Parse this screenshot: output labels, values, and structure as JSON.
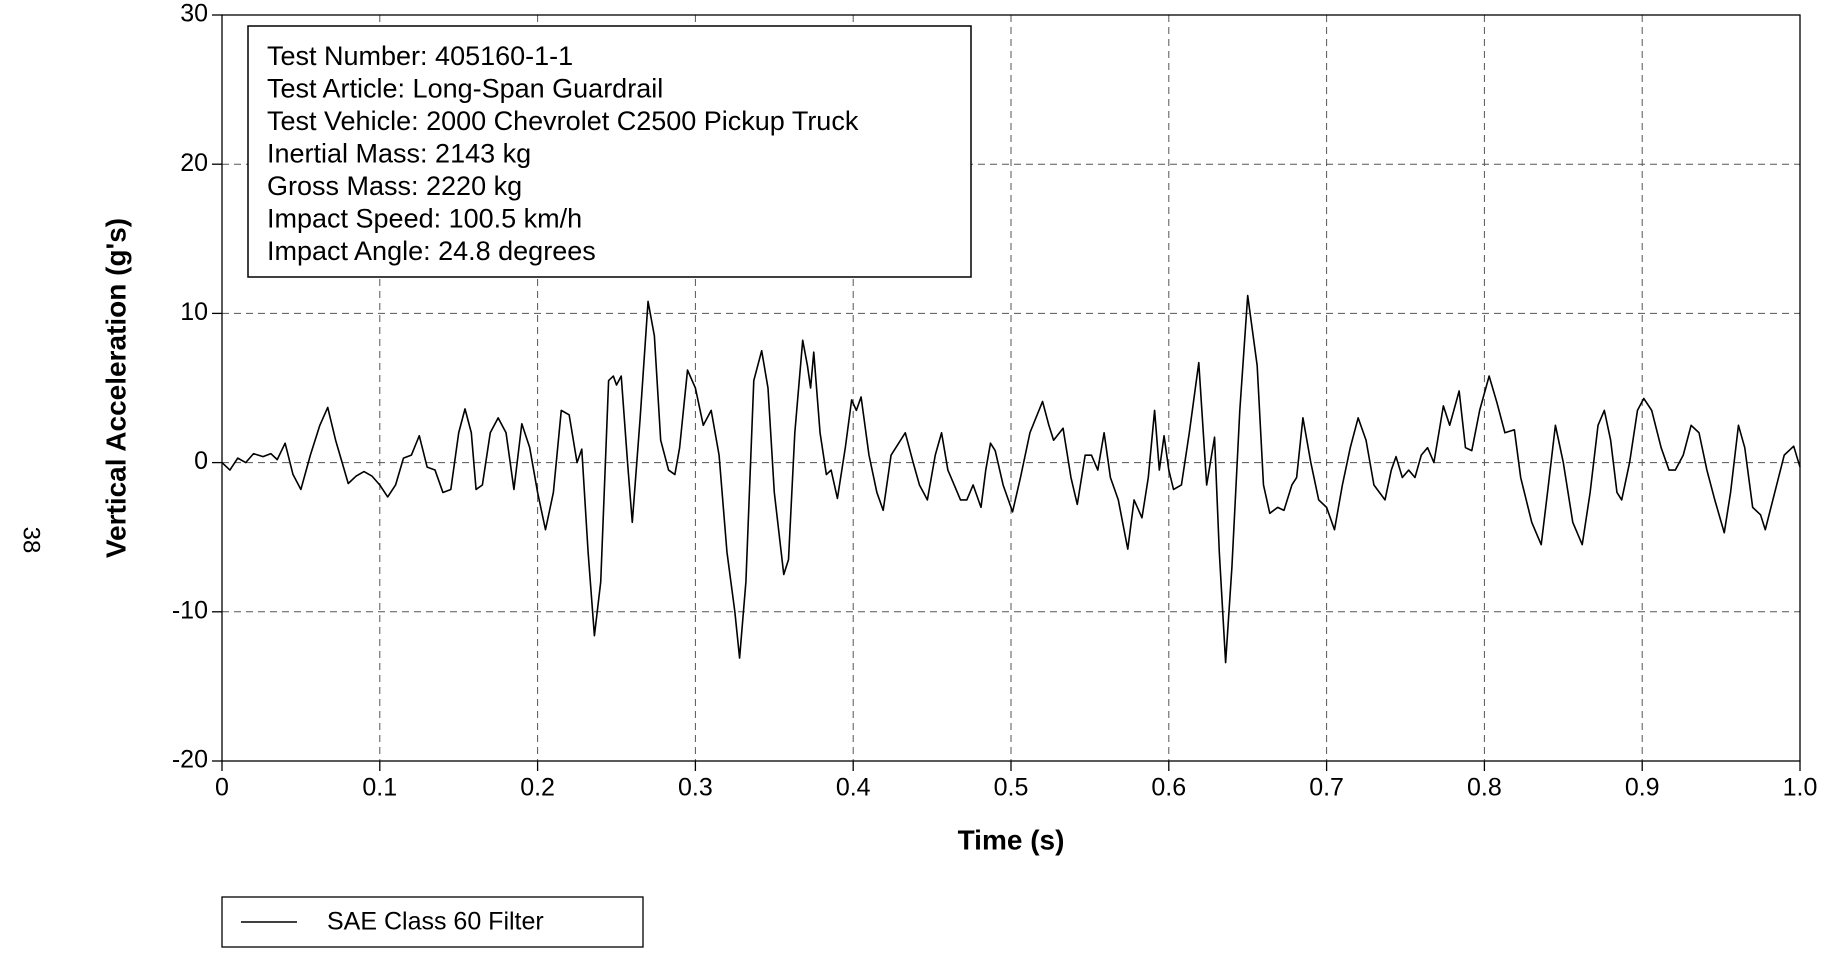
{
  "chart_data": {
    "type": "line",
    "page_number": "38",
    "xlabel": "Time (s)",
    "ylabel": "Vertical Acceleration (g's)",
    "annotations": [
      "Test Number: 405160-1-1",
      "Test Article: Long-Span Guardrail",
      "Test Vehicle: 2000 Chevrolet C2500 Pickup Truck",
      "Inertial Mass: 2143 kg",
      "Gross Mass: 2220 kg",
      "Impact Speed: 100.5 km/h",
      "Impact Angle: 24.8 degrees"
    ],
    "xlim": [
      0,
      1
    ],
    "ylim": [
      -20,
      30
    ],
    "xticks": [
      0,
      0.1,
      0.2,
      0.3,
      0.4,
      0.5,
      0.6,
      0.7,
      0.8,
      0.9,
      {
        "value": 1,
        "label": "1.0"
      }
    ],
    "yticks": [
      -20,
      -10,
      0,
      10,
      20,
      30
    ],
    "grid": true,
    "legend": "bottom-left",
    "x": [
      0,
      0.005,
      0.01,
      0.015,
      0.02,
      0.026,
      0.031,
      0.035,
      0.04,
      0.045,
      0.05,
      0.056,
      0.062,
      0.067,
      0.072,
      0.08,
      0.085,
      0.09,
      0.095,
      0.1,
      0.105,
      0.11,
      0.115,
      0.12,
      0.125,
      0.13,
      0.135,
      0.14,
      0.145,
      0.15,
      0.154,
      0.158,
      0.161,
      0.165,
      0.17,
      0.175,
      0.18,
      0.185,
      0.19,
      0.195,
      0.2,
      0.205,
      0.21,
      0.215,
      0.22,
      0.225,
      0.228,
      0.232,
      0.236,
      0.24,
      0.245,
      0.248,
      0.25,
      0.253,
      0.257,
      0.26,
      0.265,
      0.27,
      0.274,
      0.278,
      0.283,
      0.287,
      0.29,
      0.295,
      0.3,
      0.305,
      0.31,
      0.315,
      0.32,
      0.325,
      0.328,
      0.332,
      0.337,
      0.342,
      0.346,
      0.35,
      0.356,
      0.359,
      0.363,
      0.368,
      0.371,
      0.373,
      0.375,
      0.379,
      0.383,
      0.386,
      0.39,
      0.395,
      0.399,
      0.402,
      0.405,
      0.41,
      0.415,
      0.419,
      0.424,
      0.433,
      0.438,
      0.442,
      0.447,
      0.452,
      0.456,
      0.46,
      0.464,
      0.468,
      0.472,
      0.476,
      0.481,
      0.484,
      0.487,
      0.49,
      0.495,
      0.501,
      0.506,
      0.512,
      0.52,
      0.524,
      0.527,
      0.533,
      0.538,
      0.542,
      0.547,
      0.551,
      0.555,
      0.559,
      0.563,
      0.568,
      0.574,
      0.578,
      0.583,
      0.587,
      0.591,
      0.594,
      0.597,
      0.6,
      0.603,
      0.608,
      0.613,
      0.619,
      0.624,
      0.629,
      0.632,
      0.636,
      0.64,
      0.645,
      0.65,
      0.656,
      0.66,
      0.664,
      0.669,
      0.673,
      0.678,
      0.681,
      0.685,
      0.69,
      0.695,
      0.7,
      0.705,
      0.71,
      0.715,
      0.72,
      0.725,
      0.73,
      0.737,
      0.741,
      0.744,
      0.748,
      0.752,
      0.756,
      0.76,
      0.764,
      0.768,
      0.774,
      0.778,
      0.784,
      0.788,
      0.792,
      0.797,
      0.803,
      0.808,
      0.813,
      0.819,
      0.823,
      0.83,
      0.836,
      0.84,
      0.845,
      0.85,
      0.856,
      0.862,
      0.867,
      0.872,
      0.876,
      0.88,
      0.884,
      0.887,
      0.892,
      0.897,
      0.901,
      0.906,
      0.912,
      0.917,
      0.921,
      0.926,
      0.931,
      0.936,
      0.941,
      0.946,
      0.952,
      0.956,
      0.961,
      0.965,
      0.97,
      0.975,
      0.978,
      0.984,
      0.99,
      0.996,
      1
    ],
    "series": [
      {
        "name": "SAE Class 60 Filter",
        "color": "#000000",
        "values": [
          0,
          -0.5,
          0.3,
          0,
          0.6,
          0.4,
          0.6,
          0.2,
          1.3,
          -0.8,
          -1.8,
          0.5,
          2.5,
          3.7,
          1.5,
          -1.4,
          -0.9,
          -0.6,
          -0.9,
          -1.5,
          -2.3,
          -1.5,
          0.3,
          0.5,
          1.8,
          -0.3,
          -0.5,
          -2,
          -1.8,
          2,
          3.6,
          2,
          -1.8,
          -1.5,
          2,
          3,
          2,
          -1.8,
          2.6,
          1,
          -2,
          -4.5,
          -2,
          3.5,
          3.2,
          0,
          0.9,
          -6,
          -11.6,
          -8,
          5.5,
          5.8,
          5.2,
          5.8,
          0,
          -4,
          3,
          10.8,
          8.5,
          1.5,
          -0.5,
          -0.8,
          1,
          6.2,
          5,
          2.5,
          3.5,
          0.5,
          -6,
          -10,
          -13.1,
          -8,
          5.5,
          7.5,
          5,
          -2,
          -7.5,
          -6.5,
          2,
          8.2,
          6.5,
          5,
          7.4,
          2,
          -0.8,
          -0.5,
          -2.4,
          1,
          4.2,
          3.5,
          4.4,
          0.5,
          -2,
          -3.2,
          0.5,
          2,
          0,
          -1.5,
          -2.5,
          0.5,
          2,
          -0.5,
          -1.5,
          -2.5,
          -2.5,
          -1.5,
          -3,
          -0.5,
          1.3,
          0.8,
          -1.5,
          -3.3,
          -1,
          2,
          4.1,
          2.5,
          1.5,
          2.3,
          -1,
          -2.8,
          0.5,
          0.5,
          -0.5,
          2,
          -1,
          -2.5,
          -5.8,
          -2.5,
          -3.7,
          -1,
          3.5,
          -0.5,
          1.8,
          -0.5,
          -1.8,
          -1.5,
          2,
          6.7,
          -1.5,
          1.7,
          -6,
          -13.4,
          -7,
          3.5,
          11.2,
          6.5,
          -1.5,
          -3.4,
          -3,
          -3.2,
          -1.5,
          -1,
          3,
          0,
          -2.5,
          -3,
          -4.5,
          -1.5,
          1,
          3,
          1.5,
          -1.5,
          -2.5,
          -0.5,
          0.4,
          -1,
          -0.5,
          -1,
          0.5,
          1,
          0,
          3.8,
          2.5,
          4.8,
          1,
          0.8,
          3.5,
          5.8,
          4,
          2,
          2.2,
          -1,
          -4,
          -5.5,
          -2,
          2.5,
          0,
          -4,
          -5.5,
          -2,
          2.5,
          3.5,
          1.5,
          -2,
          -2.5,
          0,
          3.5,
          4.3,
          3.5,
          1,
          -0.5,
          -0.5,
          0.5,
          2.5,
          2,
          -0.5,
          -2.5,
          -4.7,
          -2,
          2.5,
          1,
          -3,
          -3.5,
          -4.5,
          -2,
          0.5,
          1.1,
          -0.3
        ]
      }
    ]
  }
}
